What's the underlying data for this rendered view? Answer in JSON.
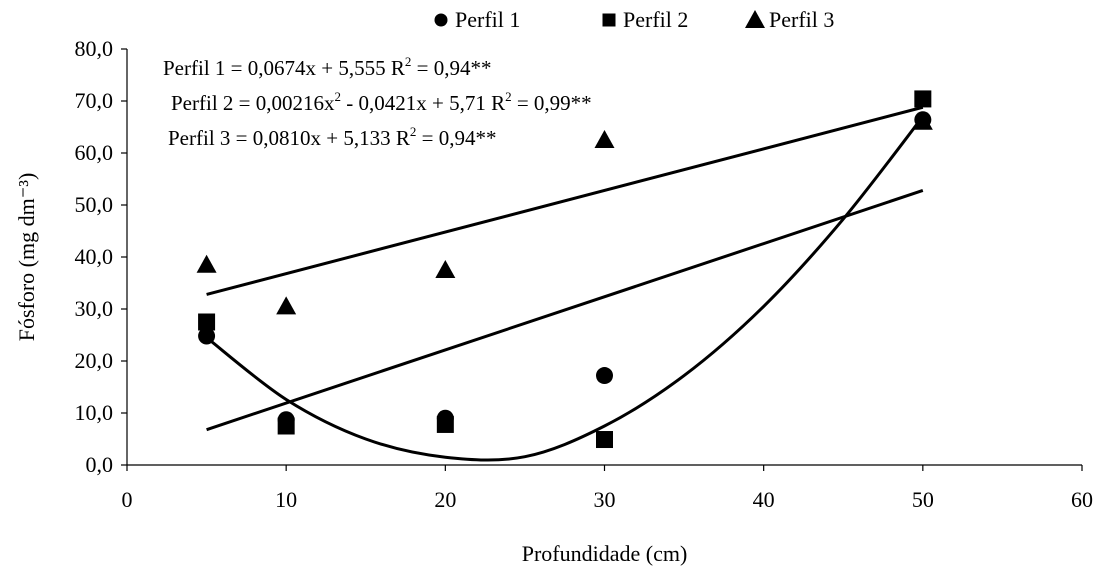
{
  "chart_data": {
    "type": "scatter",
    "xlabel": "Profundidade (cm)",
    "ylabel": "Fósforo (mg dm⁻³)",
    "xlim": [
      0,
      60
    ],
    "ylim": [
      0,
      80
    ],
    "xticks": [
      "0",
      "10",
      "20",
      "30",
      "40",
      "50",
      "60"
    ],
    "yticks": [
      "0,0",
      "10,0",
      "20,0",
      "30,0",
      "40,0",
      "50,0",
      "60,0",
      "70,0",
      "80,0"
    ],
    "grid": false,
    "legend_position": "top",
    "series": [
      {
        "name": "Perfil 1",
        "marker": "circle",
        "x": [
          5,
          10,
          20,
          30,
          50
        ],
        "y": [
          24.8,
          8.7,
          9.0,
          17.2,
          66.4
        ]
      },
      {
        "name": "Perfil 2",
        "marker": "square",
        "x": [
          5,
          10,
          20,
          30,
          50
        ],
        "y": [
          27.5,
          7.5,
          7.8,
          4.9,
          70.4
        ]
      },
      {
        "name": "Perfil 3",
        "marker": "triangle",
        "x": [
          5,
          10,
          20,
          30,
          50
        ],
        "y": [
          38.5,
          30.5,
          37.5,
          62.5,
          66.0
        ]
      }
    ],
    "fits": [
      {
        "kind": "linear",
        "x_range": [
          5,
          50
        ],
        "y_range": [
          6.8,
          52.8
        ]
      },
      {
        "kind": "quadratic",
        "x_range": [
          5,
          50
        ],
        "points": [
          [
            5,
            24.5
          ],
          [
            10,
            12.6
          ],
          [
            15,
            5.0
          ],
          [
            20,
            1.5
          ],
          [
            25,
            1.6
          ],
          [
            30,
            7.5
          ],
          [
            35,
            17.2
          ],
          [
            40,
            30.5
          ],
          [
            45,
            47.3
          ],
          [
            50,
            67.0
          ]
        ]
      },
      {
        "kind": "linear",
        "x_range": [
          5,
          50
        ],
        "y_range": [
          32.8,
          68.8
        ]
      }
    ],
    "equations": [
      {
        "text": "Perfil 1 = 0,0674x + 5,555 R",
        "sup": "2",
        "after": " = 0,94**"
      },
      {
        "text": "Perfil 2 = 0,00216x",
        "sup": "2",
        "middle": " - 0,0421x + 5,71 R",
        "sup2": "2",
        "after": " = 0,99**"
      },
      {
        "text": "Perfil 3 = 0,0810x + 5,133 R",
        "sup": "2",
        "after": " = 0,94**"
      }
    ]
  }
}
